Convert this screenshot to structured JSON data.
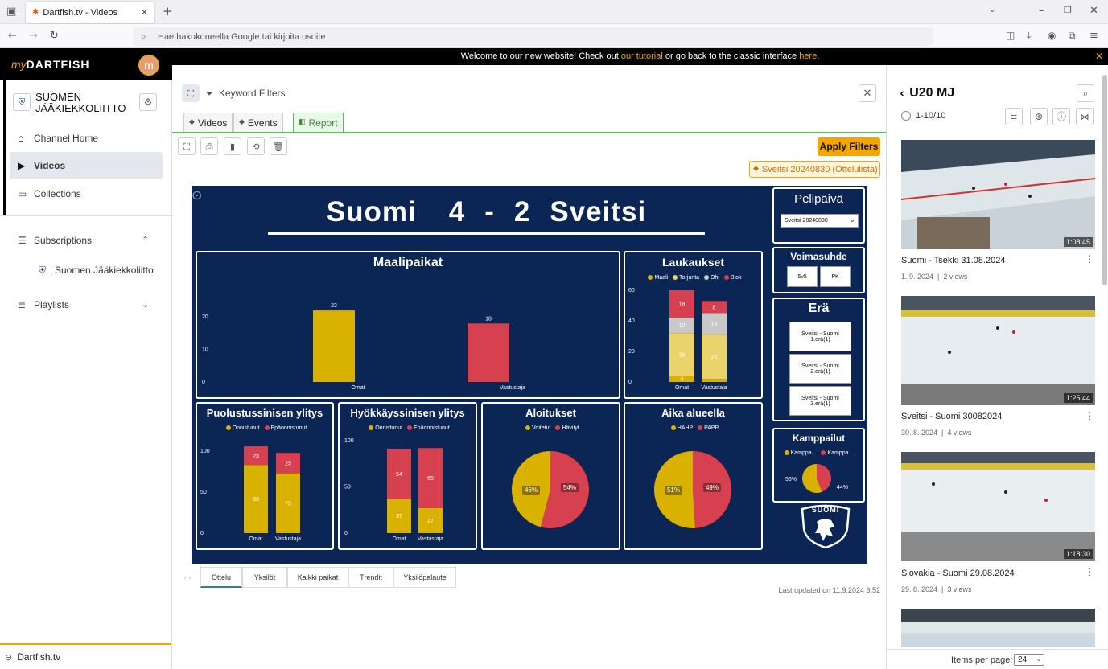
{
  "browser": {
    "tab_title": "Dartfish.tv - Videos",
    "url_placeholder": "Hae hakukoneella Google tai kirjoita osoite"
  },
  "sidebar": {
    "brand_my": "my",
    "brand_name": "DARTFISH",
    "avatar_letter": "m",
    "org_name_line1": "SUOMEN",
    "org_name_line2": "JÄÄKIEKKOLIITTO",
    "items": [
      {
        "label": "Channel Home"
      },
      {
        "label": "Videos"
      },
      {
        "label": "Collections"
      },
      {
        "label": "Subscriptions"
      },
      {
        "label": "Suomen Jääkiekkoliitto"
      },
      {
        "label": "Playlists"
      }
    ],
    "footer": "Dartfish.tv"
  },
  "banner": {
    "text_before": "Welcome to our new website! Check out ",
    "link1": "our tutorial",
    "text_middle": " or go back to the classic interface ",
    "link2": "here",
    "text_after": "."
  },
  "main": {
    "keyword_filters": "Keyword Filters",
    "tabs": {
      "videos": "Videos",
      "events": "Events",
      "report": "Report"
    },
    "apply_filters": "Apply Filters",
    "filter_tag": "Sveitsi 20240830 (Ottelulista)",
    "last_updated": "Last updated on 11.9.2024 3.52",
    "report_tabs": [
      "Ottelu",
      "Yksilöt",
      "Kaikki paikat",
      "Trendit",
      "Yksilöpalaute"
    ]
  },
  "dashboard": {
    "score": {
      "home": "Suomi",
      "home_goals": "4",
      "dash": "-",
      "away_goals": "2",
      "away": "Sveitsi"
    },
    "pelipaiva": {
      "title": "Pelipäivä",
      "selected": "Sveitsi 20240830"
    },
    "voimasuhde": {
      "title": "Voimasuhde",
      "options": [
        "5v5",
        "PK"
      ]
    },
    "era": {
      "title": "Erä",
      "options": [
        "Sveitsi - Suomi 1.erä(1)",
        "Sveitsi - Suomi 2.erä(1)",
        "Sveitsi - Suomi 3.erä(1)"
      ]
    },
    "kamppailut": {
      "title": "Kamppailut",
      "legend": [
        "Kamppa...",
        "Kamppa..."
      ],
      "values": [
        56,
        44
      ],
      "labels": [
        "56%",
        "44%"
      ]
    },
    "logo_text": "SUOMI"
  },
  "chart_data": [
    {
      "type": "bar",
      "title": "Maalipaikat",
      "categories": [
        "Omat",
        "Vastustaja"
      ],
      "values": [
        22,
        18
      ],
      "yticks": [
        "0",
        "10",
        "20"
      ],
      "ylim": [
        0,
        25
      ],
      "colors": [
        "#d9b200",
        "#d7414f"
      ]
    },
    {
      "type": "bar",
      "title": "Laukaukset",
      "stacked": true,
      "categories": [
        "Omat",
        "Vastustaja"
      ],
      "legend": [
        "Maali",
        "Torjunta",
        "Ohi",
        "Blok"
      ],
      "series": [
        {
          "name": "Maali",
          "values": [
            4,
            2
          ],
          "labels": [
            "4",
            ""
          ],
          "color": "#d9b200"
        },
        {
          "name": "Torjunta",
          "values": [
            28,
            29
          ],
          "labels": [
            "28",
            "29"
          ],
          "color": "#ead36a"
        },
        {
          "name": "Ohi",
          "values": [
            10,
            14
          ],
          "labels": [
            "10",
            "14"
          ],
          "color": "#c8c8c8"
        },
        {
          "name": "Blok",
          "values": [
            18,
            8
          ],
          "labels": [
            "18",
            "8"
          ],
          "color": "#d7414f"
        }
      ],
      "yticks": [
        "0",
        "20",
        "40",
        "60"
      ],
      "ylim": [
        0,
        60
      ]
    },
    {
      "type": "bar",
      "title": "Puolustussinisen ylitys",
      "stacked": true,
      "categories": [
        "Omat",
        "Vastustaja"
      ],
      "legend": [
        "Onnistunut",
        "Epäonnistunut"
      ],
      "series": [
        {
          "name": "Onnistunut",
          "values": [
            83,
            73
          ],
          "labels": [
            "83",
            "73"
          ],
          "color": "#d9b200"
        },
        {
          "name": "Epäonnistunut",
          "values": [
            23,
            25
          ],
          "labels": [
            "23",
            "25"
          ],
          "color": "#d7414f"
        }
      ],
      "yticks": [
        "0",
        "50",
        "100"
      ],
      "ylim": [
        0,
        110
      ]
    },
    {
      "type": "bar",
      "title": "Hyökkäyssinisen ylitys",
      "stacked": true,
      "categories": [
        "Omat",
        "Vastustaja"
      ],
      "legend": [
        "Onnistunut",
        "Epäonnistunut"
      ],
      "series": [
        {
          "name": "Onnistunut",
          "values": [
            37,
            27
          ],
          "labels": [
            "37",
            "27"
          ],
          "color": "#d9b200"
        },
        {
          "name": "Epäonnistunut",
          "values": [
            54,
            65
          ],
          "labels": [
            "54",
            "65"
          ],
          "color": "#d7414f"
        }
      ],
      "yticks": [
        "0",
        "50",
        "100"
      ],
      "ylim": [
        0,
        100
      ]
    },
    {
      "type": "pie",
      "title": "Aloitukset",
      "legend": [
        "Voitetut",
        "Hävityt"
      ],
      "values": [
        46,
        54
      ],
      "labels": [
        "46%",
        "54%"
      ],
      "colors": [
        "#d9b200",
        "#d7414f"
      ]
    },
    {
      "type": "pie",
      "title": "Aika alueella",
      "legend": [
        "HAHP",
        "PAPP"
      ],
      "values": [
        51,
        49
      ],
      "labels": [
        "51%",
        "49%"
      ],
      "colors": [
        "#d9b200",
        "#d7414f"
      ]
    }
  ],
  "right_panel": {
    "title": "U20 MJ",
    "range": "1-10/10",
    "videos": [
      {
        "title": "Suomi - Tsekki 31.08.2024",
        "date": "1. 9. 2024",
        "views": "2 views",
        "duration": "1:08:45"
      },
      {
        "title": "Sveitsi - Suomi 30082024",
        "date": "30. 8. 2024",
        "views": "4 views",
        "duration": "1:25:44"
      },
      {
        "title": "Slovakia - Suomi 29.08.2024",
        "date": "29. 8. 2024",
        "views": "3 views",
        "duration": "1:18:30"
      }
    ],
    "items_per_page_label": "Items per page:",
    "items_per_page": "24"
  },
  "colors": {
    "accent": "#f5a500",
    "navy": "#0b2555",
    "yellow": "#d9b200",
    "red": "#d7414f",
    "report_green": "#5cb85c"
  }
}
